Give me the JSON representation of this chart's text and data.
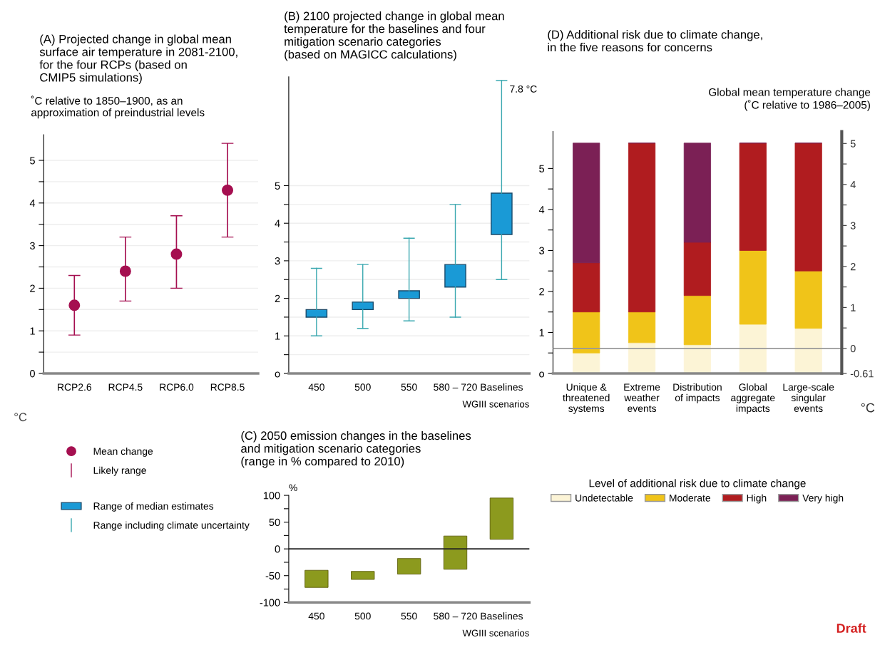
{
  "chart_data": [
    {
      "type": "scatter",
      "title": "(A) Projected change in global mean\nsurface air temperature in 2081-2100,\nfor the four RCPs (based on\nCMIP5 simulations)",
      "ylabel": "˚C relative to 1850–1900, as an\napproximation of preindustrial levels",
      "categories": [
        "RCP2.6",
        "RCP4.5",
        "RCP6.0",
        "RCP8.5"
      ],
      "series": [
        {
          "name": "Mean change",
          "color": "#a50f50",
          "values": [
            1.6,
            2.4,
            2.8,
            4.3
          ],
          "errors": [
            [
              0.9,
              2.3
            ],
            [
              1.7,
              3.2
            ],
            [
              2.0,
              3.7
            ],
            [
              3.2,
              5.4
            ]
          ]
        }
      ],
      "ylim": [
        0,
        5.6
      ],
      "yticks": [
        0,
        {
          "value": 0.5,
          "label": null
        },
        1,
        {
          "value": 1.5,
          "label": null
        },
        2,
        {
          "value": 2.5,
          "label": null
        },
        3,
        {
          "value": 3.5,
          "label": null
        },
        4,
        {
          "value": 4.5,
          "label": null
        },
        5
      ],
      "grid": "y",
      "marker": "circle",
      "legend": "bottom left",
      "annotations": [
        "Likely range",
        "°C"
      ]
    },
    {
      "type": "box",
      "title": "(B) 2100 projected change in global mean\ntemperature for the baselines and four\nmitigation scenario categories\n(based on MAGICC calculations)",
      "xlabel": "WGIII scenarios",
      "categories": [
        "450",
        "500",
        "550",
        "580 – 720",
        "Baselines"
      ],
      "series": [
        {
          "name": "Range of median estimates",
          "color": "#1a9ad6",
          "boxes": [
            {
              "low": 1.0,
              "q1": 1.5,
              "q3": 1.7,
              "high": 2.8
            },
            {
              "low": 1.2,
              "q1": 1.7,
              "q3": 1.9,
              "high": 2.9
            },
            {
              "low": 1.4,
              "q1": 2.0,
              "q3": 2.2,
              "high": 3.6
            },
            {
              "low": 1.5,
              "q1": 2.3,
              "q3": 2.9,
              "high": 4.5
            },
            {
              "low": 2.5,
              "q1": 3.7,
              "q3": 4.8,
              "high": 7.8
            }
          ]
        }
      ],
      "ylim": [
        0,
        7.9
      ],
      "yticks": [
        {
          "value": 0,
          "label": "o"
        },
        {
          "value": 0.5,
          "label": null
        },
        1,
        {
          "value": 1.5,
          "label": null
        },
        2,
        {
          "value": 2.5,
          "label": null
        },
        3,
        {
          "value": 3.5,
          "label": null
        },
        4,
        {
          "value": 4.5,
          "label": null
        },
        5
      ],
      "grid": "y",
      "legend": "bottom left",
      "annotations": [
        "Range including climate uncertainty",
        {
          "text": "7.8 °C",
          "x": "Baselines",
          "y": 7.8
        }
      ]
    },
    {
      "type": "bar",
      "title": "(C) 2050 emission changes in the baselines\nand mitigation scenario categories\n(range in % compared to 2010)",
      "xlabel": "WGIII scenarios",
      "ylabel": "%",
      "categories": [
        "450",
        "500",
        "550",
        "580 – 720",
        "Baselines"
      ],
      "series": [
        {
          "color": "#8c9a1e",
          "base": [
            -72,
            -57,
            -47,
            -38,
            18
          ],
          "values": [
            32,
            15,
            29,
            62,
            77
          ]
        }
      ],
      "ylim": [
        -100,
        100
      ],
      "yticks": [
        -100,
        {
          "value": -75,
          "label": null
        },
        -50,
        {
          "value": -25,
          "label": null
        },
        0,
        {
          "value": 25,
          "label": null
        },
        50,
        {
          "value": 75,
          "label": null
        },
        100
      ],
      "ref_lines": [
        {
          "axis": "y",
          "value": 0,
          "color": "#222222"
        }
      ]
    },
    {
      "type": "bar",
      "stacked": true,
      "title": "(D) Additional risk due to climate change,\nin the five reasons for concerns",
      "y2label": "Global mean temperature change\n(˚C relative to 1986–2005)",
      "legend_title": "Level of additional risk due to climate change",
      "categories": [
        "Unique &\nthreatened\nsystems",
        "Extreme\nweather\nevents",
        "Distribution\nof impacts",
        "Global\naggregate\nimpacts",
        "Large-scale\nsingular\nevents"
      ],
      "series": [
        {
          "name": "Undetectable",
          "color": "#fcf4d6",
          "values": [
            0.5,
            0.75,
            0.7,
            1.2,
            1.1
          ]
        },
        {
          "name": "Moderate",
          "color": "#f0c419",
          "values": [
            1.0,
            0.75,
            1.2,
            1.8,
            1.4
          ]
        },
        {
          "name": "High",
          "color": "#b01c1f",
          "values": [
            1.2,
            4.12,
            1.3,
            2.62,
            3.12
          ]
        },
        {
          "name": "Very high",
          "color": "#7b2055",
          "values": [
            2.92,
            0,
            2.42,
            0,
            0
          ]
        }
      ],
      "ylim": [
        0,
        5.9
      ],
      "yticks": [
        {
          "value": 0,
          "label": "o"
        },
        {
          "value": 0.5,
          "label": null
        },
        1,
        {
          "value": 1.5,
          "label": null
        },
        2,
        {
          "value": 2.5,
          "label": null
        },
        3,
        {
          "value": 3.5,
          "label": null
        },
        4,
        {
          "value": 4.5,
          "label": null
        },
        5
      ],
      "y2lim": [
        -0.61,
        5.29
      ],
      "y2ticks": [
        {
          "value": -0.61,
          "label": "-0.61"
        },
        0,
        {
          "value": 0.5,
          "label": null
        },
        1,
        {
          "value": 1.5,
          "label": null
        },
        2,
        {
          "value": 2.5,
          "label": null
        },
        3,
        {
          "value": 3.5,
          "label": null
        },
        4,
        {
          "value": 4.5,
          "label": null
        },
        5
      ],
      "ref_lines": [
        {
          "axis": "y2",
          "value": 0,
          "color": "#999999"
        }
      ],
      "legend": "bottom",
      "annotations": [
        "°C",
        "Draft"
      ]
    }
  ]
}
